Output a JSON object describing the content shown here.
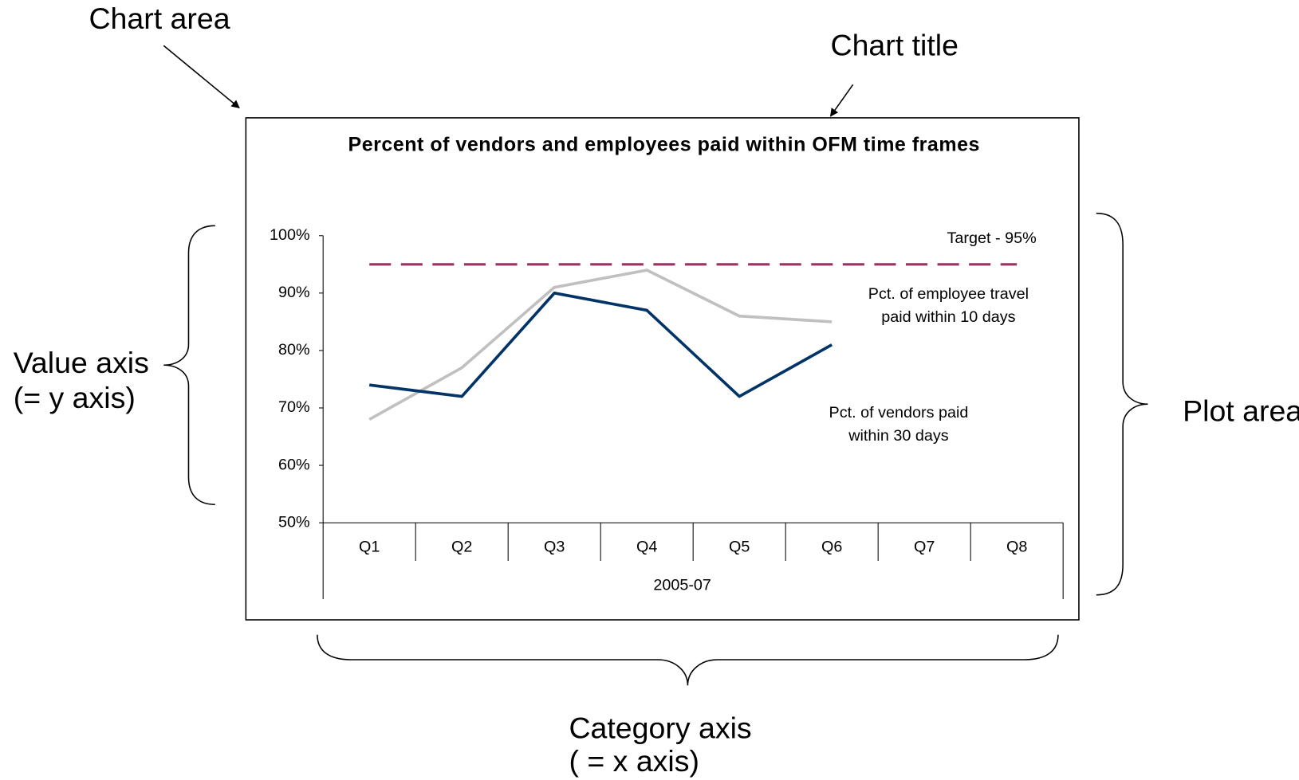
{
  "chart_data": {
    "type": "line",
    "title": "Percent of vendors and employees paid within OFM time frames",
    "categories": [
      "Q1",
      "Q2",
      "Q3",
      "Q4",
      "Q5",
      "Q6",
      "Q7",
      "Q8"
    ],
    "xlabel": "2005-07",
    "series": [
      {
        "name": "Target - 95%",
        "color": "#993366",
        "style": "dashed",
        "values": [
          95,
          95,
          95,
          95,
          95,
          95,
          95,
          95
        ]
      },
      {
        "name": "Pct. of employee travel paid within 10 days",
        "color": "#c0c0c0",
        "style": "solid",
        "values": [
          68,
          77,
          91,
          94,
          86,
          85,
          null,
          null
        ]
      },
      {
        "name": "Pct. of vendors paid within 30 days",
        "color": "#003366",
        "style": "solid",
        "values": [
          74,
          72,
          90,
          87,
          72,
          81,
          null,
          null
        ]
      }
    ],
    "ylim": [
      50,
      100
    ],
    "yticks": [
      {
        "value": 50,
        "label": "50%"
      },
      {
        "value": 60,
        "label": "60%"
      },
      {
        "value": 70,
        "label": "70%"
      },
      {
        "value": 80,
        "label": "80%"
      },
      {
        "value": 90,
        "label": "90%"
      },
      {
        "value": 100,
        "label": "100%"
      }
    ],
    "grid": false
  },
  "callouts": [
    {
      "lines": [
        "Chart area"
      ]
    },
    {
      "lines": [
        "Chart title"
      ]
    },
    {
      "lines": [
        "Value axis",
        "(= y axis)"
      ]
    },
    {
      "lines": [
        "Plot area"
      ]
    },
    {
      "lines": [
        "Category axis",
        "( = x axis)"
      ]
    }
  ]
}
